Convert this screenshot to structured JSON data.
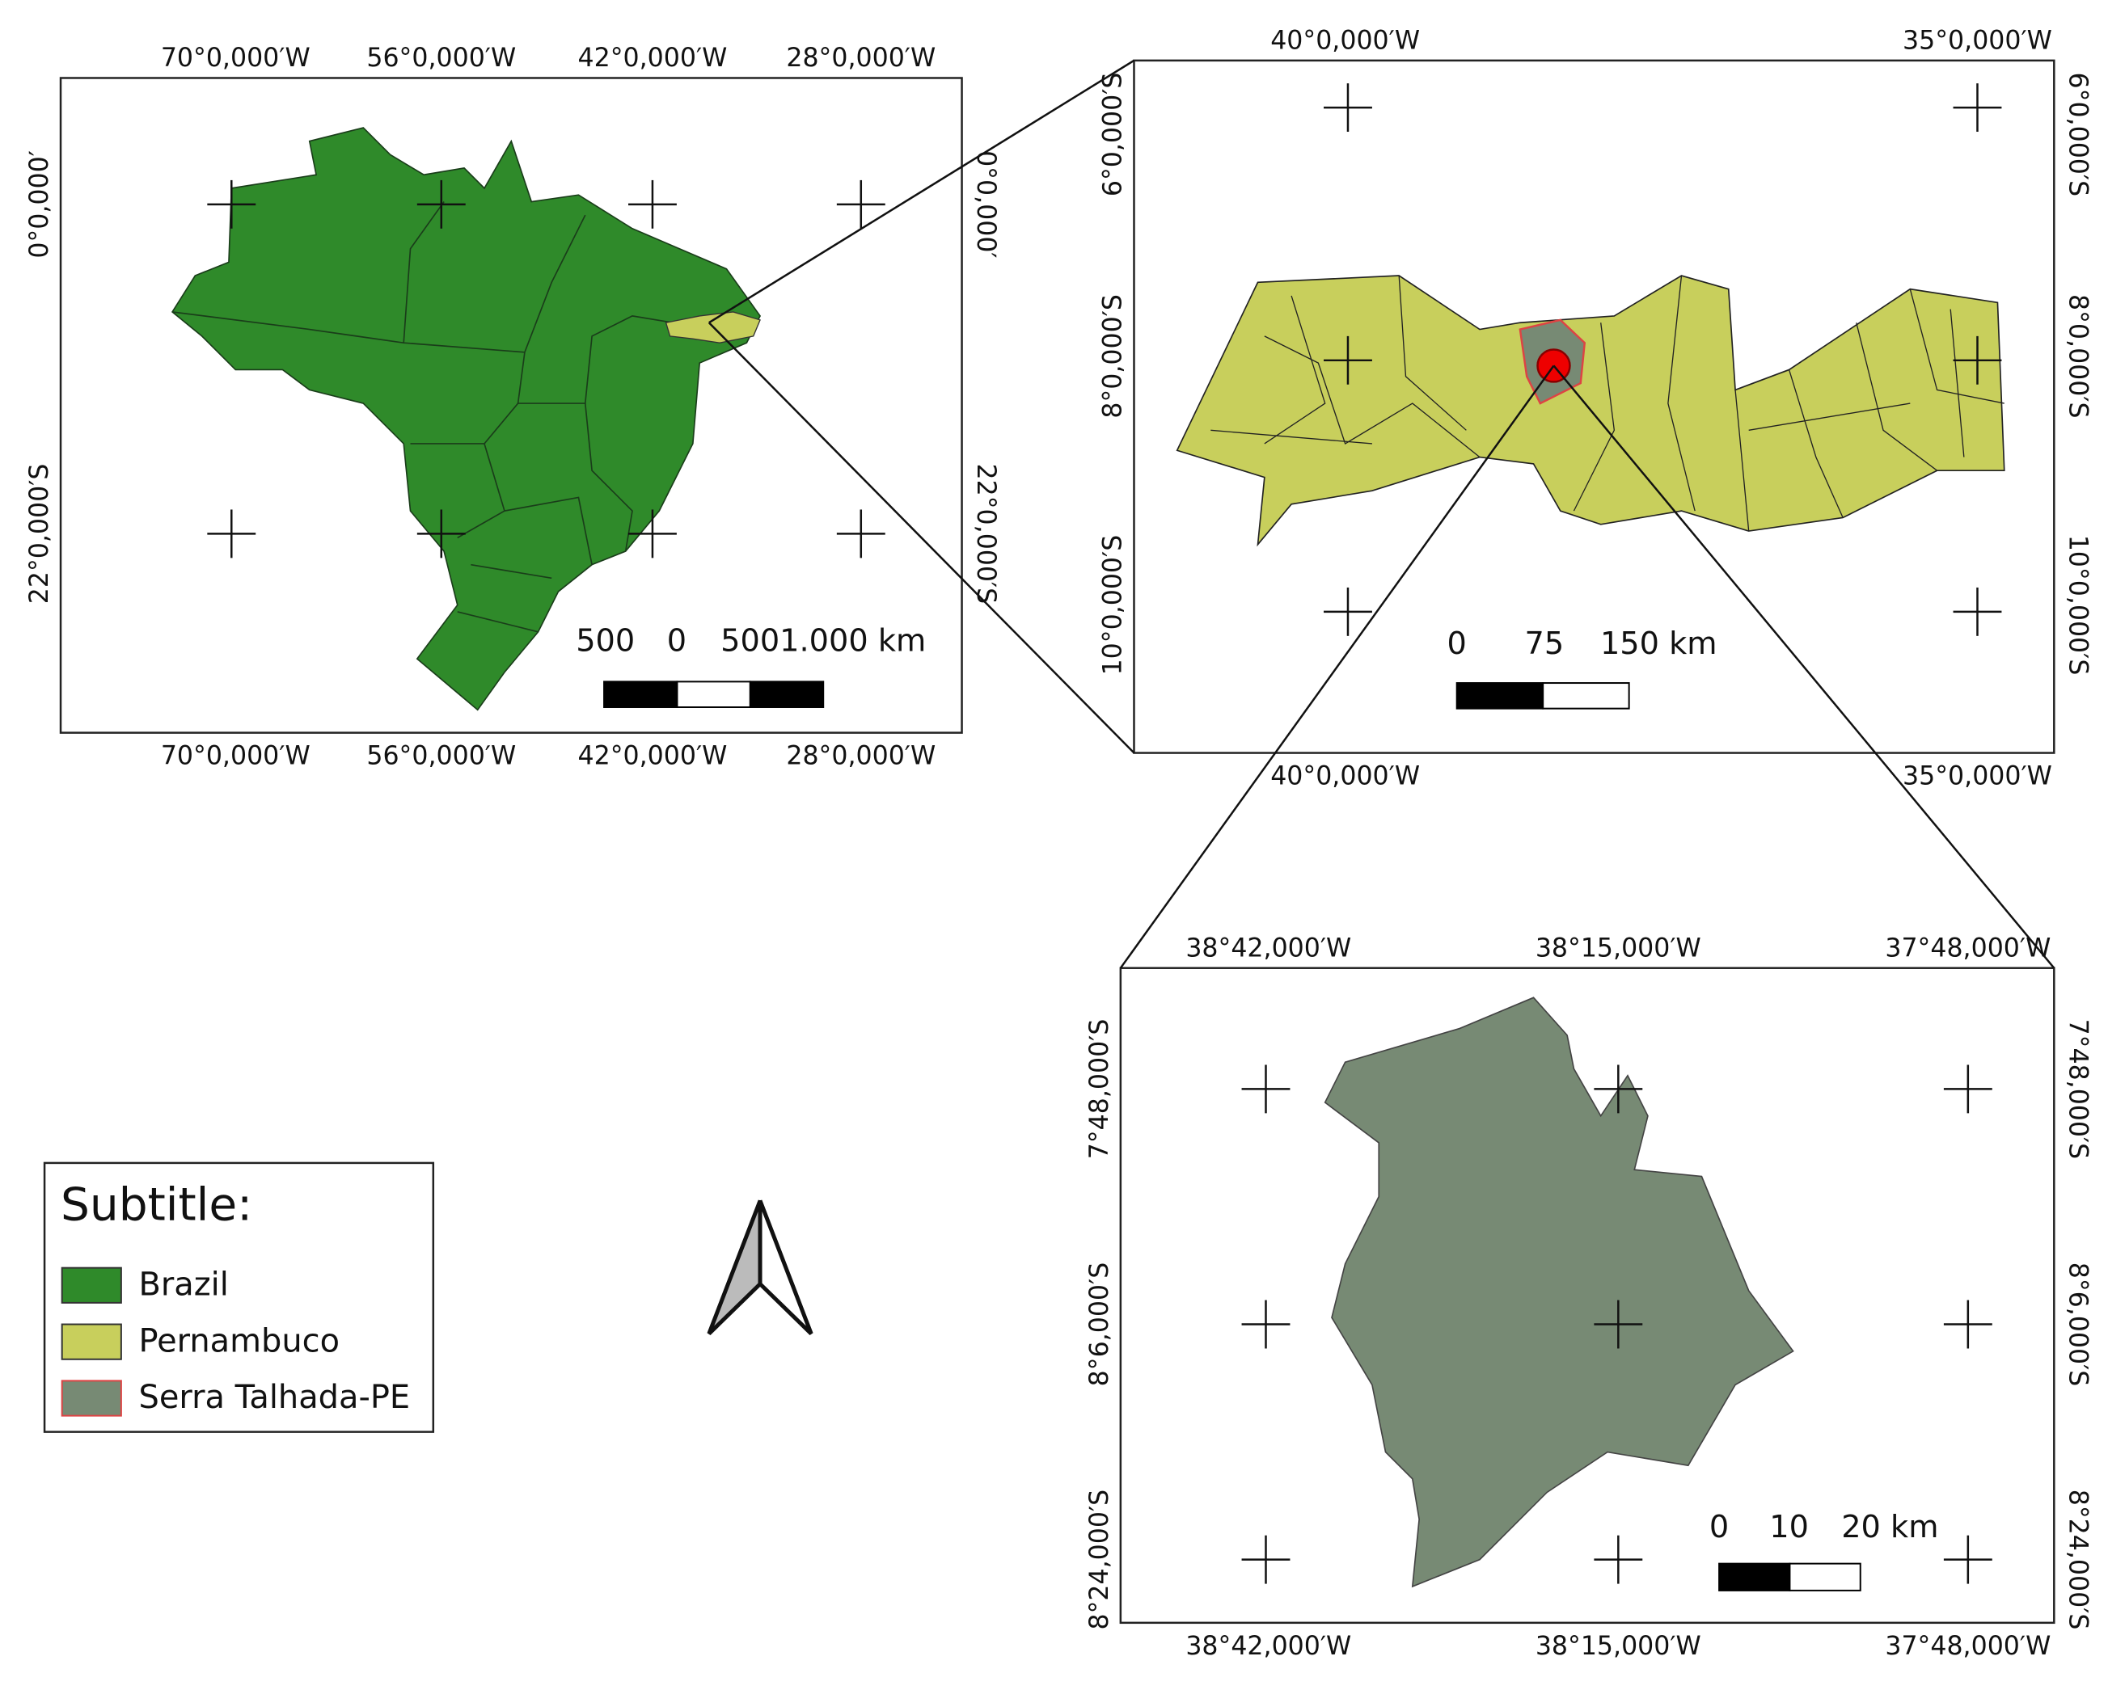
{
  "brazil_map": {
    "lon_labels": [
      "70°0,000′W",
      "56°0,000′W",
      "42°0,000′W",
      "28°0,000′W"
    ],
    "lat_labels": [
      "0°0,000′",
      "22°0,000′S"
    ],
    "scale_labels": [
      "500",
      "0",
      "5001.000 km"
    ]
  },
  "pernambuco_map": {
    "lon_labels": [
      "40°0,000′W",
      "35°0,000′W"
    ],
    "lat_labels": [
      "6°0,000′S",
      "8°0,000′S",
      "10°0,000′S"
    ],
    "scale_labels": [
      "0",
      "75",
      "150 km"
    ]
  },
  "serra_talhada_map": {
    "lon_labels": [
      "38°42,000′W",
      "38°15,000′W",
      "37°48,000′W"
    ],
    "lat_labels": [
      "7°48,000′S",
      "8°6,000′S",
      "8°24,000′S"
    ],
    "scale_labels": [
      "0",
      "10",
      "20 km"
    ]
  },
  "legend": {
    "title": "Subtitle:",
    "items": [
      {
        "label": "Brazil",
        "color": "#2f8a2a"
      },
      {
        "label": "Pernambuco",
        "color": "#c8cf5c"
      },
      {
        "label": "Serra Talhada-PE",
        "color": "#778a74"
      }
    ]
  }
}
